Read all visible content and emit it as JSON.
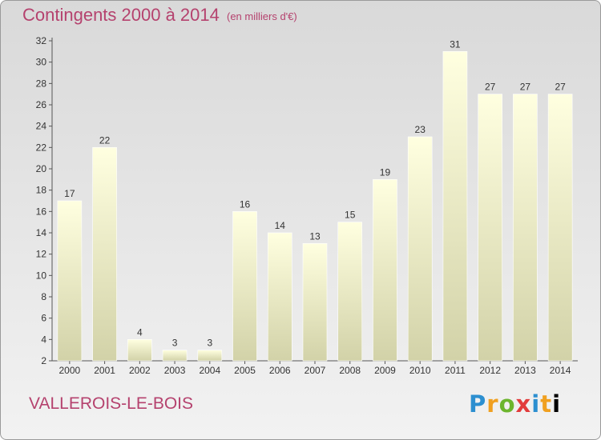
{
  "header": {
    "title": "Contingents 2000 à 2014",
    "subtitle": "(en milliers d'€)"
  },
  "footer": {
    "commune": "VALLEROIS-LE-BOIS",
    "brand": [
      "P",
      "r",
      "o",
      "x",
      "i",
      "t",
      "i"
    ]
  },
  "colors": {
    "accent": "#b5426e",
    "bar_top": "#ffffe0",
    "bar_bottom": "#d2d2a8"
  },
  "chart_data": {
    "type": "bar",
    "categories": [
      "2000",
      "2001",
      "2002",
      "2003",
      "2004",
      "2005",
      "2006",
      "2007",
      "2008",
      "2009",
      "2010",
      "2011",
      "2012",
      "2013",
      "2014"
    ],
    "values": [
      17,
      22,
      4,
      3,
      3,
      16,
      14,
      13,
      15,
      19,
      23,
      31,
      27,
      27,
      27
    ],
    "title": "Contingents 2000 à 2014",
    "subtitle": "(en milliers d'€)",
    "xlabel": "",
    "ylabel": "",
    "ylim": [
      2,
      32
    ],
    "yticks": [
      2,
      4,
      6,
      8,
      10,
      12,
      14,
      16,
      18,
      20,
      22,
      24,
      26,
      28,
      30,
      32
    ],
    "grid": false,
    "legend": "none"
  }
}
